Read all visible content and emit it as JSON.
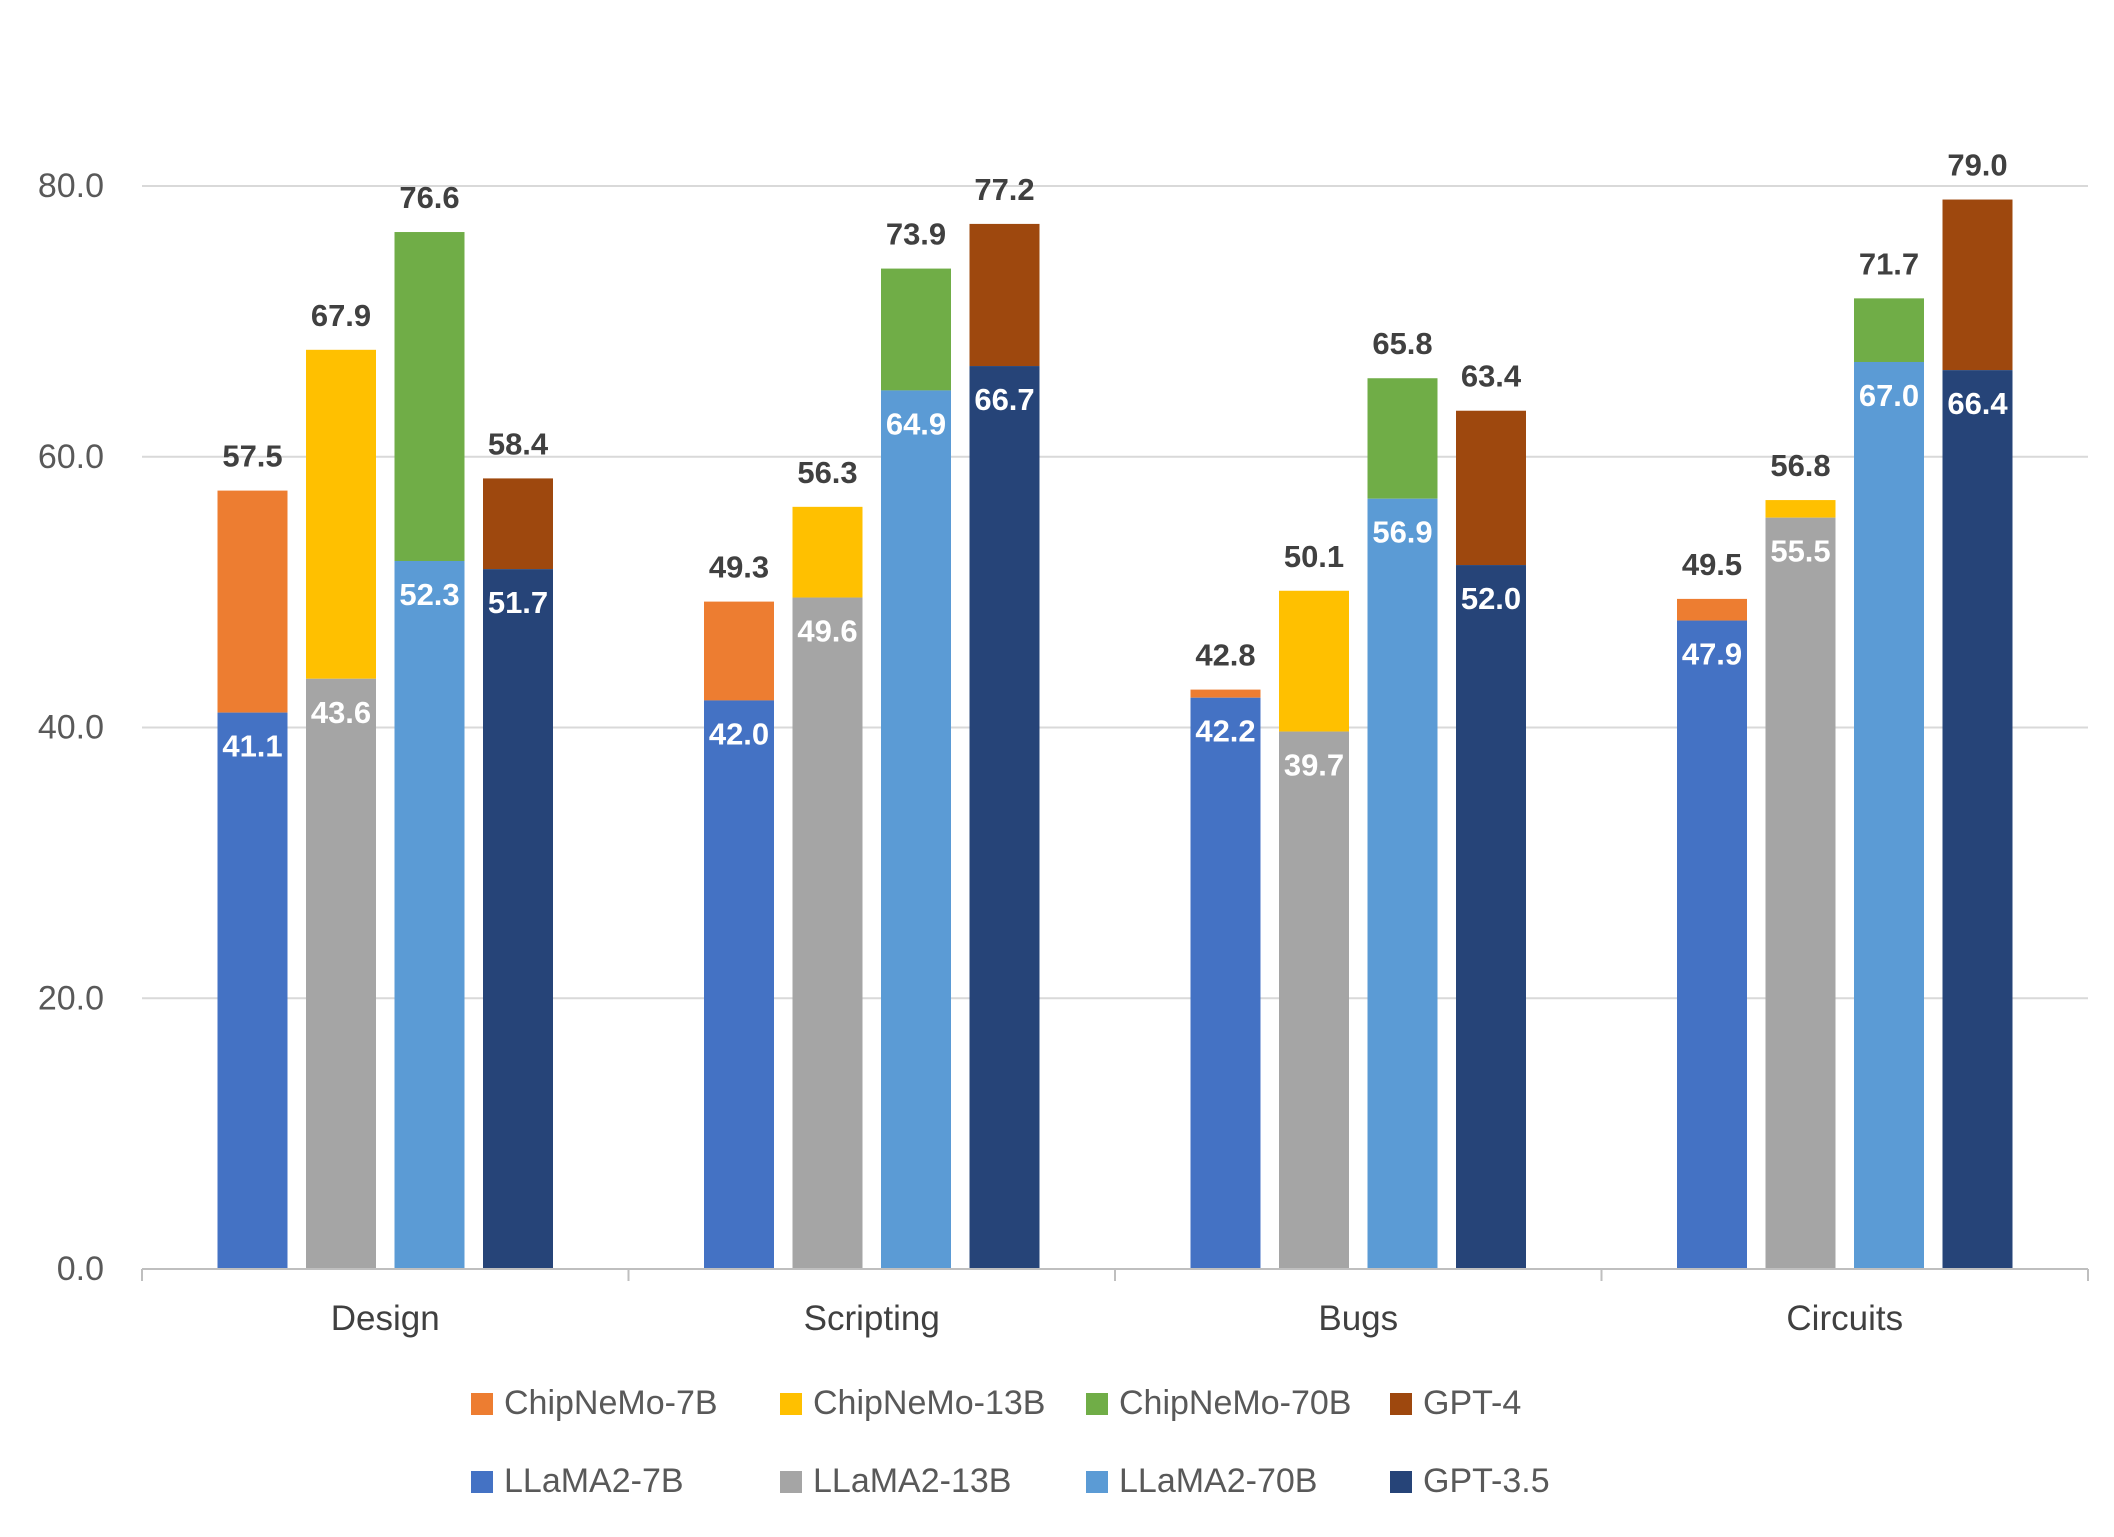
{
  "chart_data": {
    "type": "bar",
    "title": "",
    "xlabel": "",
    "ylabel": "",
    "ylim": [
      0,
      80
    ],
    "yticks": [
      "0.0",
      "20.0",
      "40.0",
      "60.0",
      "80.0"
    ],
    "categories": [
      "Design",
      "Scripting",
      "Bugs",
      "Circuits"
    ],
    "grid": true,
    "legend_position": "bottom",
    "groups": [
      {
        "base": "LLaMA2-7B",
        "top": "ChipNeMo-7B"
      },
      {
        "base": "LLaMA2-13B",
        "top": "ChipNeMo-13B"
      },
      {
        "base": "LLaMA2-70B",
        "top": "ChipNeMo-70B"
      },
      {
        "base": "GPT-3.5",
        "top": "GPT-4"
      }
    ],
    "series": [
      {
        "name": "ChipNeMo-7B",
        "color": "#ED7D31",
        "values": [
          57.5,
          49.3,
          42.8,
          49.5
        ],
        "labels": [
          "57.5",
          "49.3",
          "42.8",
          "49.5"
        ]
      },
      {
        "name": "ChipNeMo-13B",
        "color": "#FFC000",
        "values": [
          67.9,
          56.3,
          50.1,
          56.8
        ],
        "labels": [
          "67.9",
          "56.3",
          "50.1",
          "56.8"
        ]
      },
      {
        "name": "ChipNeMo-70B",
        "color": "#70AD47",
        "values": [
          76.6,
          73.9,
          65.8,
          71.7
        ],
        "labels": [
          "76.6",
          "73.9",
          "65.8",
          "71.7"
        ]
      },
      {
        "name": "GPT-4",
        "color": "#9E480E",
        "values": [
          58.4,
          77.2,
          63.4,
          79.0
        ],
        "labels": [
          "58.4",
          "77.2",
          "63.4",
          "79.0"
        ]
      },
      {
        "name": "LLaMA2-7B",
        "color": "#4472C4",
        "values": [
          41.1,
          42.0,
          42.2,
          47.9
        ],
        "labels": [
          "41.1",
          "42.0",
          "42.2",
          "47.9"
        ]
      },
      {
        "name": "LLaMA2-13B",
        "color": "#A5A5A5",
        "values": [
          43.6,
          49.6,
          39.7,
          55.5
        ],
        "labels": [
          "43.6",
          "49.6",
          "39.7",
          "55.5"
        ]
      },
      {
        "name": "LLaMA2-70B",
        "color": "#5B9BD5",
        "values": [
          52.3,
          64.9,
          56.9,
          67.0
        ],
        "labels": [
          "52.3",
          "64.9",
          "56.9",
          "67.0"
        ]
      },
      {
        "name": "GPT-3.5",
        "color": "#264478",
        "values": [
          51.7,
          66.7,
          52.0,
          66.4
        ],
        "labels": [
          "51.7",
          "66.7",
          "52.0",
          "66.4"
        ]
      }
    ],
    "legend": [
      [
        "ChipNeMo-7B",
        "ChipNeMo-13B",
        "ChipNeMo-70B",
        "GPT-4"
      ],
      [
        "LLaMA2-7B",
        "LLaMA2-13B",
        "LLaMA2-70B",
        "GPT-3.5"
      ]
    ]
  }
}
